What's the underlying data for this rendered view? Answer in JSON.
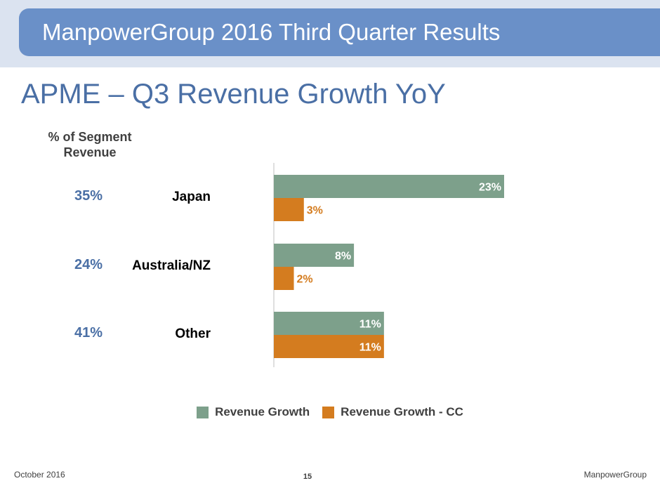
{
  "header": {
    "title": "ManpowerGroup 2016 Third Quarter Results"
  },
  "slide": {
    "title": "APME – Q3 Revenue Growth YoY"
  },
  "segment_table": {
    "header": "% of Segment Revenue",
    "rows": [
      {
        "region": "Japan",
        "share": "35%"
      },
      {
        "region": "Australia/NZ",
        "share": "24%"
      },
      {
        "region": "Other",
        "share": "41%"
      }
    ]
  },
  "chart_data": {
    "type": "bar",
    "orientation": "horizontal",
    "categories": [
      "Japan",
      "Australia/NZ",
      "Other"
    ],
    "series": [
      {
        "name": "Revenue Growth",
        "values": [
          23,
          8,
          11
        ],
        "labels": [
          "23%",
          "8%",
          "11%"
        ],
        "color": "#7da08b"
      },
      {
        "name": "Revenue Growth - CC",
        "values": [
          3,
          2,
          11
        ],
        "labels": [
          "3%",
          "2%",
          "11%"
        ],
        "color": "#d47c1f"
      }
    ],
    "xlim": [
      0,
      23
    ],
    "legend_position": "bottom",
    "grid": false
  },
  "legend": {
    "items": [
      "Revenue Growth",
      "Revenue Growth - CC"
    ]
  },
  "footer": {
    "date": "October 2016",
    "page": "15",
    "company": "ManpowerGroup"
  }
}
